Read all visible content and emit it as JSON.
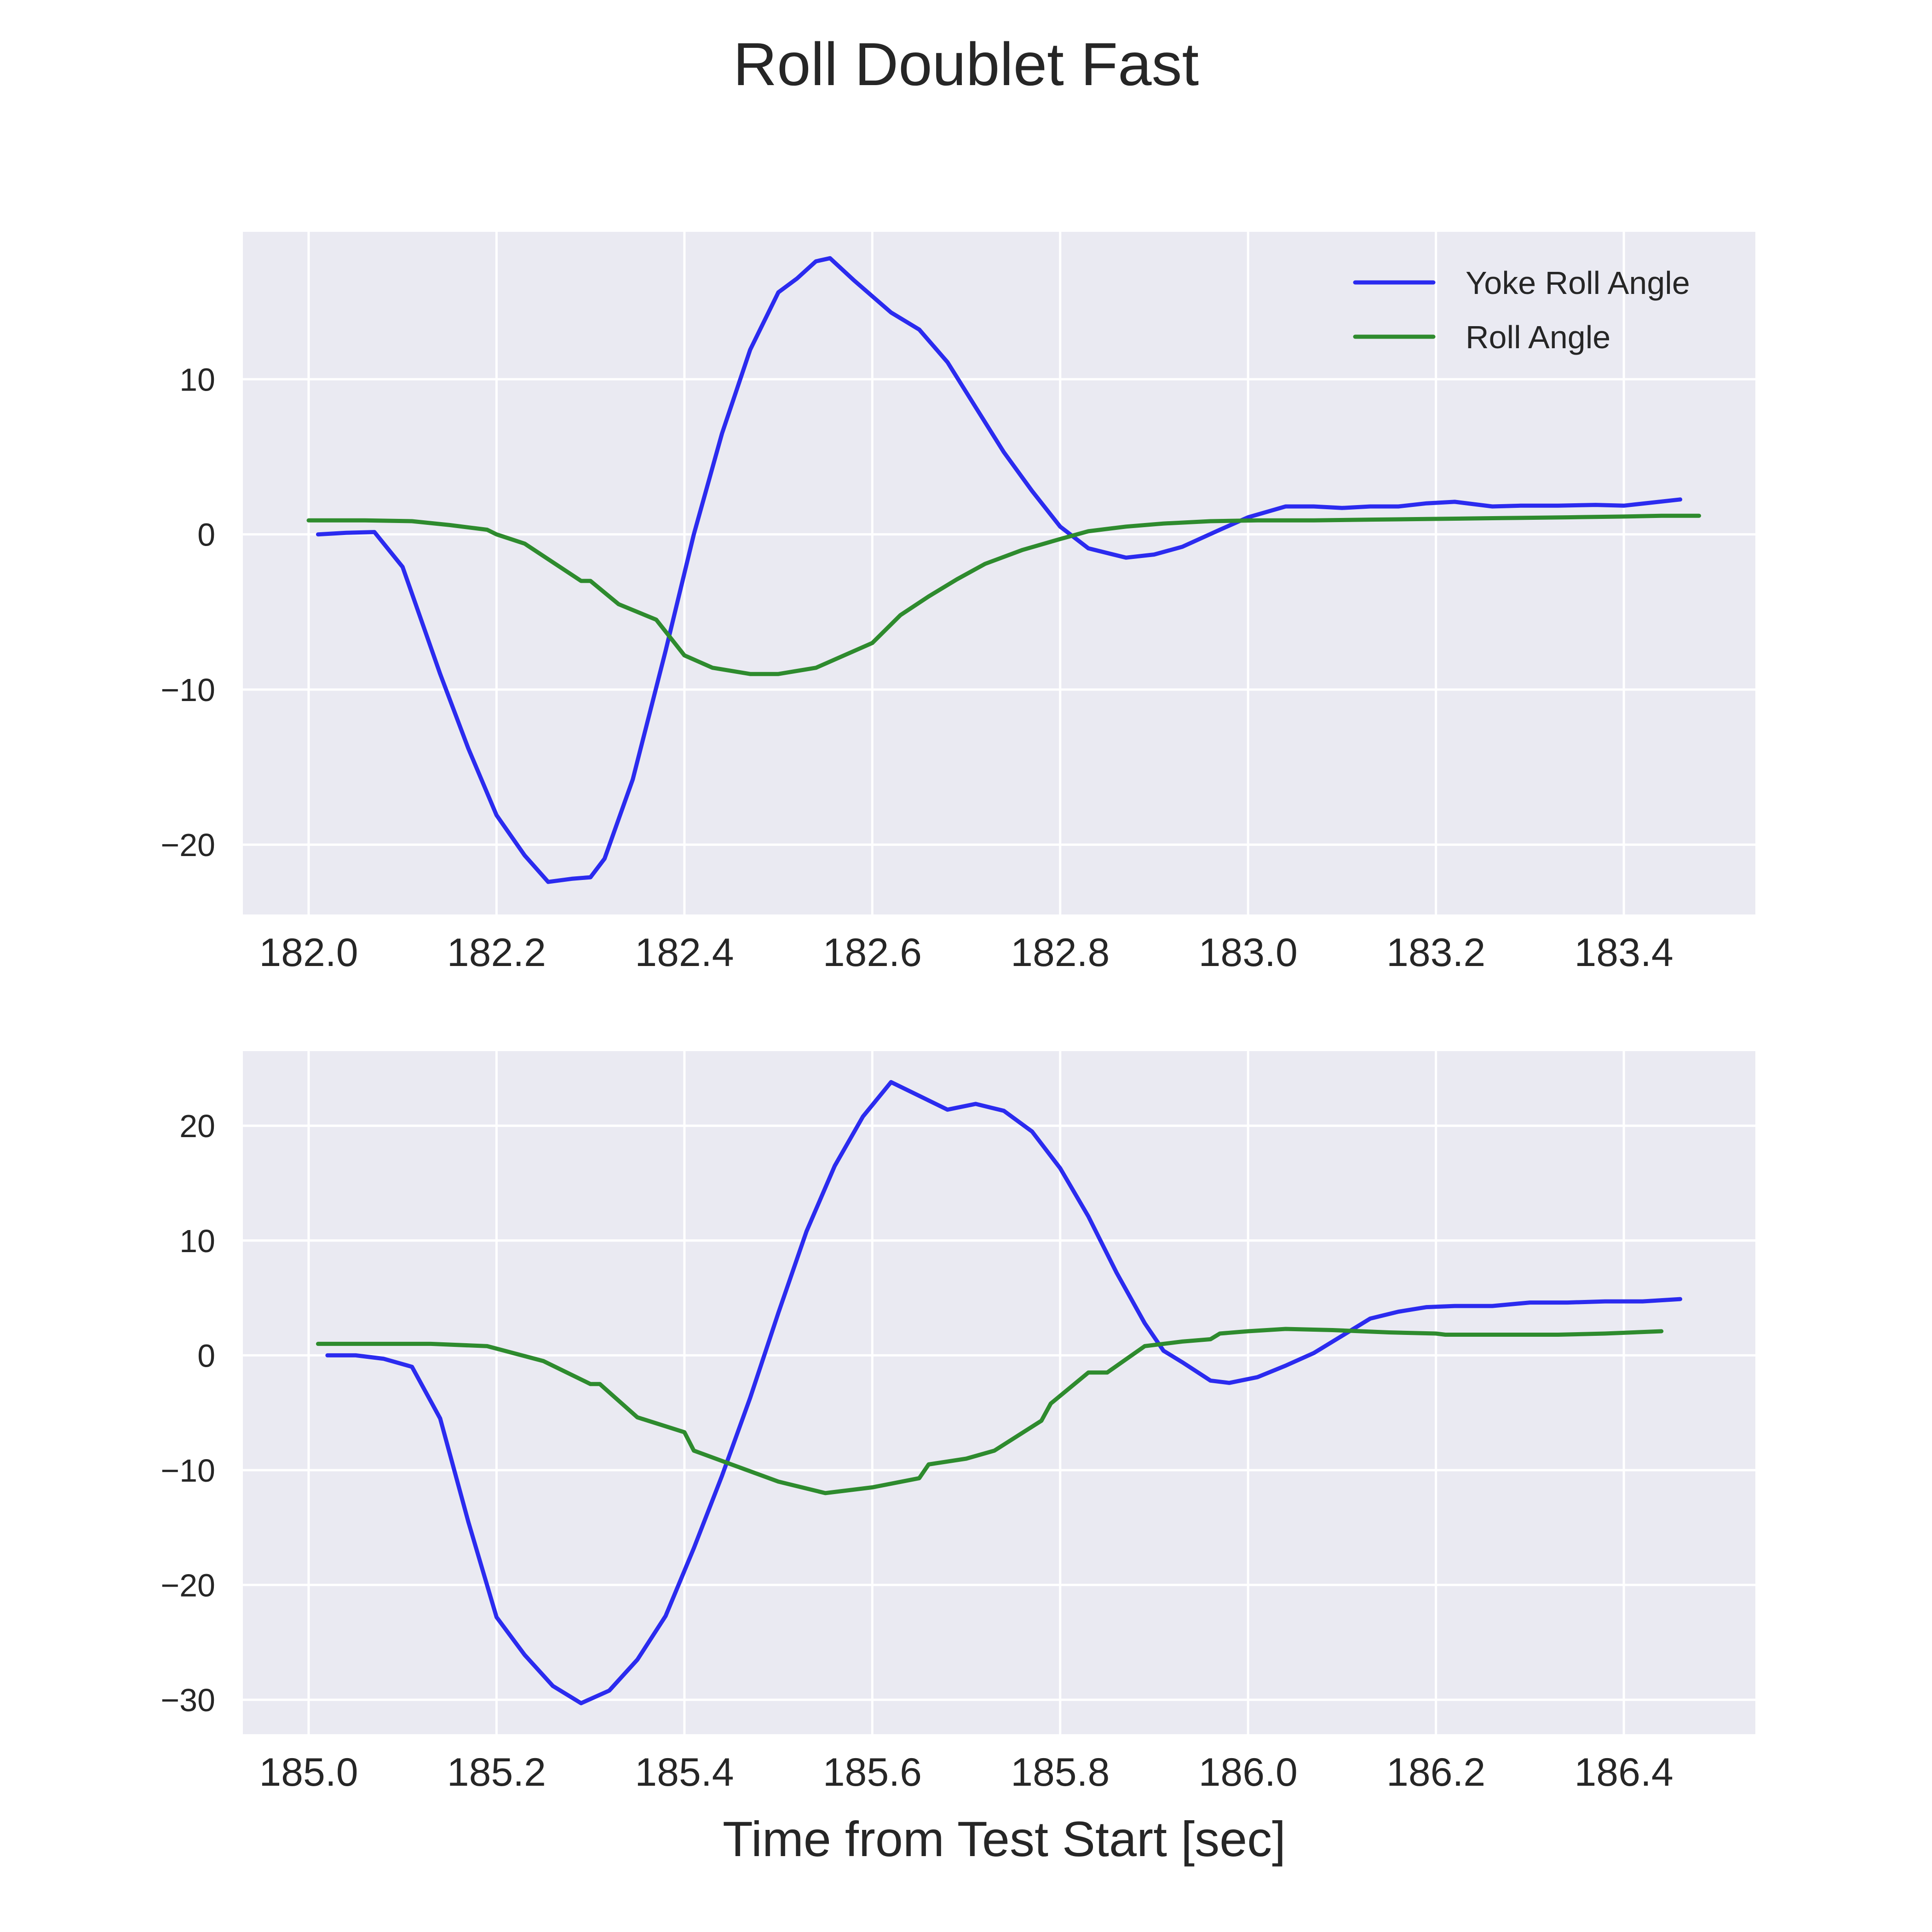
{
  "chart_data": {
    "type": "line",
    "title": "Roll Doublet Fast",
    "xlabel": "Time from Test Start [sec]",
    "grid": true,
    "legend_position": "top-right",
    "colors": {
      "Yoke Roll Angle": "#2b2bef",
      "Roll Angle": "#2e8b2e"
    },
    "subplots": [
      {
        "xlim": [
          181.93,
          183.54
        ],
        "ylim": [
          -24.5,
          19.5
        ],
        "xticks": [
          182.0,
          182.2,
          182.4,
          182.6,
          182.8,
          183.0,
          183.2,
          183.4
        ],
        "xtick_labels": [
          "182.0",
          "182.2",
          "182.4",
          "182.6",
          "182.8",
          "183.0",
          "183.2",
          "183.4"
        ],
        "yticks": [
          10,
          0,
          -10,
          -20
        ],
        "ytick_labels": [
          "10",
          "0",
          "−10",
          "−20"
        ],
        "legend": [
          "Yoke Roll Angle",
          "Roll Angle"
        ],
        "series": [
          {
            "name": "Yoke Roll Angle",
            "x": [
              182.01,
              182.04,
              182.07,
              182.1,
              182.14,
              182.17,
              182.2,
              182.23,
              182.255,
              182.28,
              182.3,
              182.315,
              182.345,
              182.38,
              182.41,
              182.44,
              182.47,
              182.5,
              182.52,
              182.54,
              182.555,
              182.58,
              182.62,
              182.65,
              182.68,
              182.71,
              182.74,
              182.77,
              182.8,
              182.83,
              182.87,
              182.9,
              182.93,
              182.97,
              183.0,
              183.04,
              183.07,
              183.1,
              183.13,
              183.16,
              183.19,
              183.22,
              183.26,
              183.29,
              183.33,
              183.37,
              183.4,
              183.46
            ],
            "y": [
              0,
              0.1,
              0.15,
              -2.1,
              -9,
              -13.8,
              -18.1,
              -20.7,
              -22.4,
              -22.2,
              -22.1,
              -20.9,
              -15.8,
              -7.5,
              0,
              6.5,
              11.9,
              15.6,
              16.5,
              17.6,
              17.8,
              16.4,
              14.3,
              13.2,
              11.1,
              8.2,
              5.3,
              2.8,
              0.5,
              -0.9,
              -1.5,
              -1.3,
              -0.8,
              0.3,
              1.1,
              1.8,
              1.8,
              1.7,
              1.8,
              1.8,
              2.0,
              2.1,
              1.8,
              1.85,
              1.85,
              1.9,
              1.85,
              2.25
            ]
          },
          {
            "name": "Roll Angle",
            "x": [
              182.0,
              182.06,
              182.11,
              182.15,
              182.19,
              182.2,
              182.23,
              182.26,
              182.29,
              182.3,
              182.33,
              182.37,
              182.4,
              182.43,
              182.47,
              182.5,
              182.54,
              182.57,
              182.6,
              182.63,
              182.66,
              182.69,
              182.72,
              182.76,
              182.8,
              182.83,
              182.87,
              182.91,
              182.96,
              183.01,
              183.07,
              183.13,
              183.2,
              183.27,
              183.34,
              183.4,
              183.44,
              183.48
            ],
            "y": [
              0.9,
              0.9,
              0.85,
              0.6,
              0.3,
              0,
              -0.6,
              -1.8,
              -3,
              -3,
              -4.5,
              -5.5,
              -7.8,
              -8.6,
              -9.0,
              -9.0,
              -8.6,
              -7.8,
              -7.0,
              -5.2,
              -4.0,
              -2.9,
              -1.9,
              -1.0,
              -0.3,
              0.2,
              0.5,
              0.7,
              0.85,
              0.9,
              0.9,
              0.95,
              1.0,
              1.05,
              1.1,
              1.15,
              1.2,
              1.2
            ]
          }
        ]
      },
      {
        "xlim": [
          184.93,
          186.54
        ],
        "ylim": [
          -33,
          26.5
        ],
        "xticks": [
          185.0,
          185.2,
          185.4,
          185.6,
          185.8,
          186.0,
          186.2,
          186.4
        ],
        "xtick_labels": [
          "185.0",
          "185.2",
          "185.4",
          "185.6",
          "185.8",
          "186.0",
          "186.2",
          "186.4"
        ],
        "yticks": [
          20,
          10,
          0,
          -10,
          -20,
          -30
        ],
        "ytick_labels": [
          "20",
          "10",
          "0",
          "−10",
          "−20",
          "−30"
        ],
        "series": [
          {
            "name": "Yoke Roll Angle",
            "x": [
              185.02,
              185.05,
              185.08,
              185.11,
              185.14,
              185.17,
              185.2,
              185.23,
              185.26,
              185.29,
              185.32,
              185.35,
              185.38,
              185.41,
              185.44,
              185.47,
              185.5,
              185.53,
              185.56,
              185.59,
              185.62,
              185.65,
              185.68,
              185.71,
              185.74,
              185.77,
              185.8,
              185.83,
              185.86,
              185.89,
              185.91,
              185.93,
              185.96,
              185.98,
              186.01,
              186.04,
              186.07,
              186.1,
              186.13,
              186.16,
              186.19,
              186.22,
              186.26,
              186.3,
              186.34,
              186.38,
              186.42,
              186.46
            ],
            "y": [
              0,
              0,
              -0.3,
              -1,
              -5.5,
              -14.5,
              -22.8,
              -26.1,
              -28.8,
              -30.3,
              -29.2,
              -26.5,
              -22.7,
              -16.8,
              -10.5,
              -3.7,
              3.7,
              10.8,
              16.5,
              20.8,
              23.8,
              22.6,
              21.4,
              21.9,
              21.3,
              19.5,
              16.3,
              12.1,
              7.2,
              2.8,
              0.4,
              -0.6,
              -2.2,
              -2.4,
              -1.9,
              -0.9,
              0.2,
              1.7,
              3.2,
              3.8,
              4.2,
              4.3,
              4.3,
              4.6,
              4.6,
              4.7,
              4.7,
              4.9
            ]
          },
          {
            "name": "Roll Angle",
            "x": [
              185.01,
              185.07,
              185.13,
              185.19,
              185.25,
              185.3,
              185.31,
              185.35,
              185.4,
              185.41,
              185.45,
              185.5,
              185.55,
              185.6,
              185.65,
              185.66,
              185.7,
              185.73,
              185.78,
              185.79,
              185.83,
              185.85,
              185.89,
              185.93,
              185.96,
              185.97,
              186.0,
              186.04,
              186.09,
              186.15,
              186.2,
              186.21,
              186.27,
              186.33,
              186.38,
              186.44
            ],
            "y": [
              1,
              1,
              1,
              0.8,
              -0.5,
              -2.5,
              -2.5,
              -5.4,
              -6.7,
              -8.3,
              -9.5,
              -11,
              -12,
              -11.5,
              -10.7,
              -9.5,
              -9,
              -8.3,
              -5.7,
              -4.2,
              -1.5,
              -1.5,
              0.8,
              1.2,
              1.4,
              1.9,
              2.1,
              2.3,
              2.2,
              2.0,
              1.9,
              1.8,
              1.8,
              1.8,
              1.9,
              2.1
            ]
          }
        ]
      }
    ]
  }
}
